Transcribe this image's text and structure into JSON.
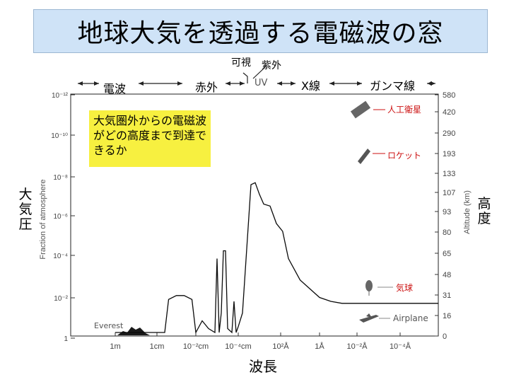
{
  "title": "地球大気を透過する電磁波の窓",
  "note": "大気圏外からの電磁波がどの高度まで到達できるか",
  "left_label": "大気圧",
  "right_label": "高度",
  "xlabel_jp": "波長",
  "bands": {
    "radio": "電波",
    "infrared": "赤外",
    "visible": "可視",
    "ultraviolet": "紫外",
    "uv": "UV",
    "xray": "X線",
    "gamma": "ガンマ線"
  },
  "chart_data": {
    "type": "line",
    "ylabel": "Fraction of atmosphere",
    "ylabel_right": "Altitude (km)",
    "y_ticks": [
      "10⁻¹²",
      "10⁻¹⁰",
      "10⁻⁸",
      "10⁻⁶",
      "10⁻⁴",
      "10⁻²",
      "1"
    ],
    "x_ticks": [
      "1m",
      "1cm",
      "10⁻²cm",
      "10⁻⁴cm",
      "10²Å",
      "1Å",
      "10⁻²Å",
      "10⁻⁴Å"
    ],
    "altitude_ticks": [
      "580",
      "420",
      "290",
      "193",
      "133",
      "107",
      "93",
      "80",
      "65",
      "48",
      "31",
      "16",
      "0"
    ],
    "annotations": {
      "satellite": "人工衛星",
      "rocket": "ロケット",
      "balloon": "気球",
      "airplane": "Airplane",
      "everest": "Everest"
    },
    "series": [
      {
        "description_points": "absorption depth as log10 fraction of atmosphere vs. wavelength tick index",
        "x": [
          0.0,
          1.2,
          1.3,
          1.5,
          1.7,
          1.9,
          2.0,
          2.05,
          2.15,
          2.3,
          2.45,
          2.5,
          2.55,
          2.6,
          2.65,
          2.7,
          2.75,
          2.85,
          2.9,
          2.95,
          3.0,
          3.1,
          3.3,
          3.4,
          3.5,
          3.6,
          3.75,
          3.9,
          4.05,
          4.2,
          4.5,
          5.0,
          5.3,
          5.6,
          6.0,
          6.5,
          7.0,
          8.0
        ],
        "y": [
          0.0,
          0.0,
          -1.7,
          -1.9,
          -1.9,
          -1.7,
          0.0,
          -0.2,
          -0.6,
          -0.2,
          0.0,
          -3.8,
          0.0,
          -1.0,
          -4.2,
          -4.2,
          -0.2,
          0.0,
          -1.6,
          0.0,
          -0.3,
          -1.0,
          -7.6,
          -7.7,
          -7.1,
          -6.6,
          -6.5,
          -5.6,
          -5.2,
          -3.8,
          -2.7,
          -1.8,
          -1.6,
          -1.5,
          -1.5,
          -1.5,
          -1.5,
          -1.5
        ]
      }
    ],
    "everest_level": 0.3
  }
}
